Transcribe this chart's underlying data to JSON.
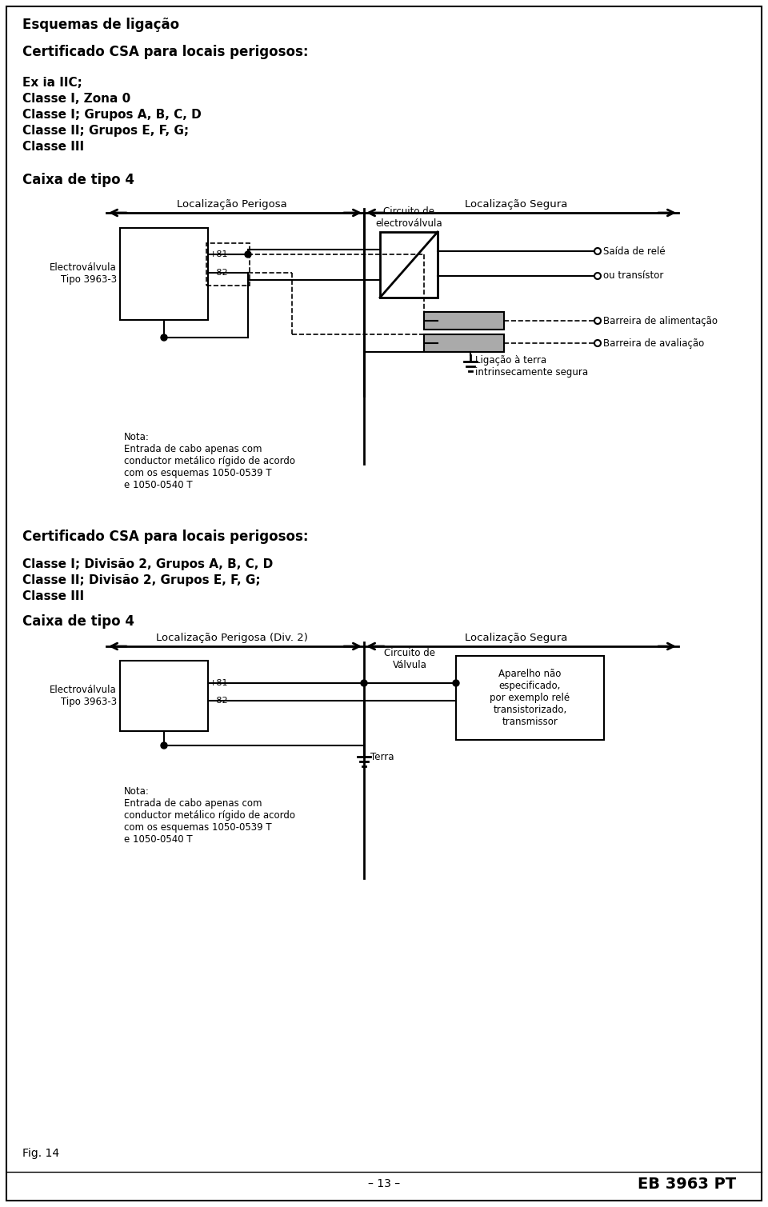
{
  "bg_color": "#ffffff",
  "text_color": "#000000",
  "title1": "Esquemas de ligação",
  "section1_header": "Certificado CSA para locais perigosos:",
  "section1_lines": [
    "Ex ia IIC;",
    "Classe I, Zona 0",
    "Classe I; Grupos A, B, C, D",
    "Classe II; Grupos E, F, G;",
    "Classe III"
  ],
  "caixa1": "Caixa de tipo 4",
  "loc_perigosa1": "Localização Perigosa",
  "loc_segura1": "Localização Segura",
  "circuito_electro": "Circuito de\nelectroválvula",
  "saida_rele": "Saída de relé",
  "ou_transistor": "ou transístor",
  "barreira_ali": "Barreira de alimentação",
  "barreira_ava": "Barreira de avaliação",
  "ligacao_terra": "Ligação à terra\nintrinsecamente segura",
  "nota1": "Nota:\nEntrada de cabo apenas com\nconductor metálico rígido de acordo\ncom os esquemas 1050-0539 T\ne 1050-0540 T",
  "electrovalvula_label": "Electroválvula\nTipo 3963-3",
  "pin81": "+81",
  "pin82": "−82",
  "section2_header": "Certificado CSA para locais perigosos:",
  "section2_lines": [
    "Classe I; Divisão 2, Grupos A, B, C, D",
    "Classe II; Divisão 2, Grupos E, F, G;",
    "Classe III"
  ],
  "caixa2": "Caixa de tipo 4",
  "loc_perigosa2": "Localização Perigosa (Div. 2)",
  "loc_segura2": "Localização Segura",
  "circuito_valvula": "Circuito de\nVálvula",
  "aparelho": "Aparelho não\nespecificado,\npor exemplo relé\ntransistorizado,\ntransmissor",
  "terra": "Terra",
  "nota2": "Nota:\nEntrada de cabo apenas com\nconductor metálico rígido de acordo\ncom os esquemas 1050-0539 T\ne 1050-0540 T",
  "fig_label": "Fig. 14",
  "page_num": "– 13 –",
  "doc_ref": "EB 3963 PT",
  "gray_color": "#aaaaaa"
}
